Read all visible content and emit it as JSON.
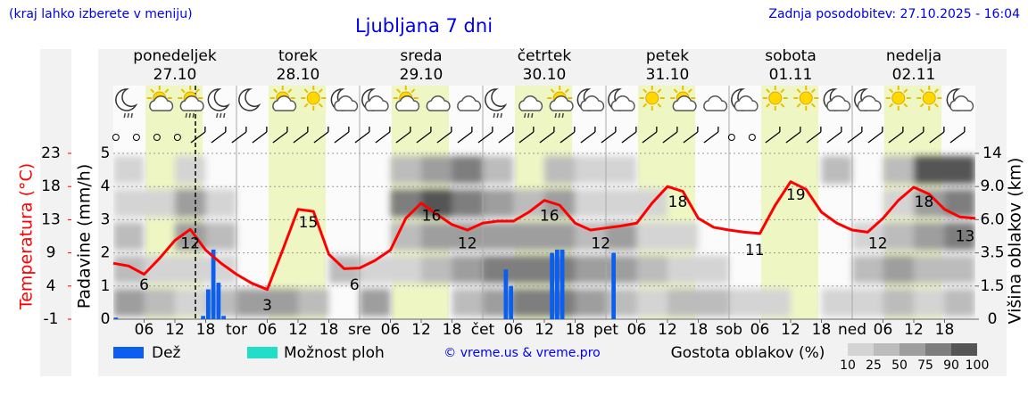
{
  "header": {
    "note": "(kraj lahko izberete v meniju)",
    "title": "Ljubljana 7 dni",
    "updated": "Zadnja posodobitev: 27.10.2025 - 16:04"
  },
  "time_axis": {
    "xlim": [
      0,
      168
    ],
    "xticks": [
      {
        "value": 6,
        "label": "06"
      },
      12,
      18,
      {
        "value": 24,
        "label": "tor"
      },
      {
        "value": 30,
        "label": "06"
      },
      {
        "value": 36,
        "label": "12"
      },
      {
        "value": 42,
        "label": "18"
      },
      {
        "value": 48,
        "label": "sre"
      },
      {
        "value": 54,
        "label": "06"
      },
      {
        "value": 60,
        "label": "12"
      },
      {
        "value": 66,
        "label": "18"
      },
      {
        "value": 72,
        "label": "čet"
      },
      {
        "value": 78,
        "label": "06"
      },
      {
        "value": 84,
        "label": "12"
      },
      {
        "value": 90,
        "label": "18"
      },
      {
        "value": 96,
        "label": "pet"
      },
      {
        "value": 102,
        "label": "06"
      },
      {
        "value": 108,
        "label": "12"
      },
      {
        "value": 114,
        "label": "18"
      },
      {
        "value": 120,
        "label": "sob"
      },
      {
        "value": 126,
        "label": "06"
      },
      {
        "value": 132,
        "label": "12"
      },
      {
        "value": 138,
        "label": "18"
      },
      {
        "value": 144,
        "label": "ned"
      },
      {
        "value": 150,
        "label": "06"
      },
      {
        "value": 156,
        "label": "12"
      },
      {
        "value": 162,
        "label": "18"
      }
    ],
    "days": [
      {
        "name": "ponedeljek",
        "date": "27.10",
        "color": "#000000"
      },
      {
        "name": "torek",
        "date": "28.10",
        "color": "#000000"
      },
      {
        "name": "sreda",
        "date": "29.10",
        "color": "#000000"
      },
      {
        "name": "četrtek",
        "date": "30.10",
        "color": "#000000"
      },
      {
        "name": "petek",
        "date": "31.10",
        "color": "#000000"
      },
      {
        "name": "sobota",
        "date": "01.11",
        "color": "#dd0000"
      },
      {
        "name": "nedelja",
        "date": "02.11",
        "color": "#dd0000"
      }
    ],
    "now": 16,
    "daylight": [
      6.25,
      17.4
    ]
  },
  "chart_data": [
    {
      "type": "line",
      "y_label": "Temperatura (°C)",
      "color": "#ff0000",
      "ylim": [
        -1,
        23
      ],
      "yticks": [
        -1,
        {
          "value": 3.8,
          "label": "4"
        },
        {
          "value": 8.6,
          "label": "9"
        },
        {
          "value": 13.4,
          "label": "13"
        },
        {
          "value": 18.2,
          "label": "18"
        },
        23
      ],
      "x": [
        0,
        3,
        6,
        9,
        12,
        15,
        18,
        21,
        24,
        27,
        30,
        33,
        36,
        39,
        42,
        45,
        48,
        51,
        54,
        57,
        60,
        63,
        66,
        69,
        72,
        75,
        78,
        81,
        84,
        87,
        90,
        93,
        96,
        99,
        102,
        105,
        108,
        111,
        114,
        117,
        120,
        123,
        126,
        129,
        132,
        135,
        138,
        141,
        144,
        147,
        150,
        153,
        156,
        159,
        162,
        165,
        168
      ],
      "values": [
        7.1,
        6.7,
        5.5,
        7.8,
        10.4,
        12.0,
        9.0,
        7.1,
        5.5,
        4.2,
        3.3,
        9.0,
        14.9,
        14.6,
        8.4,
        6.3,
        6.4,
        7.5,
        9.0,
        13.6,
        15.8,
        14.2,
        12.7,
        11.9,
        12.9,
        13.2,
        13.2,
        14.5,
        16.2,
        15.5,
        12.9,
        11.9,
        12.2,
        12.5,
        12.9,
        15.8,
        18.2,
        17.5,
        13.6,
        12.3,
        11.9,
        11.6,
        11.4,
        15.5,
        18.9,
        17.8,
        14.5,
        12.9,
        11.9,
        11.6,
        13.6,
        16.2,
        18.1,
        17.1,
        14.9,
        13.8,
        13.6
      ],
      "annotations": [
        {
          "x": 6,
          "value": 6
        },
        {
          "x": 15,
          "value": 12
        },
        {
          "x": 30,
          "value": 3
        },
        {
          "x": 38,
          "value": 15
        },
        {
          "x": 47,
          "value": 6
        },
        {
          "x": 62,
          "value": 16
        },
        {
          "x": 69,
          "value": 12
        },
        {
          "x": 85,
          "value": 16
        },
        {
          "x": 95,
          "value": 12
        },
        {
          "x": 110,
          "value": 18
        },
        {
          "x": 125,
          "value": 11
        },
        {
          "x": 133,
          "value": 19
        },
        {
          "x": 149,
          "value": 12
        },
        {
          "x": 158,
          "value": 18
        },
        {
          "x": 166,
          "value": 13
        }
      ]
    },
    {
      "type": "bar",
      "y_label": "Padavine (mm/h)",
      "ylim": [
        0,
        5
      ],
      "yticks": [
        0,
        1,
        2,
        3,
        4,
        5
      ],
      "grid": true,
      "series": [
        {
          "name": "Dež",
          "color": "#0a5ff0",
          "x": [
            0,
            17,
            18,
            19,
            20,
            21,
            76,
            77,
            85,
            86,
            87,
            97
          ],
          "values": [
            0.05,
            0.1,
            0.9,
            2.1,
            1.1,
            0.1,
            1.5,
            1.0,
            2.0,
            2.1,
            2.1,
            2.0
          ]
        },
        {
          "name": "Možnost ploh",
          "color": "#22ddc8",
          "x": [],
          "values": []
        }
      ]
    },
    {
      "type": "heatmap",
      "title": "Gostota oblakov (%)",
      "y_label": "Višina oblakov (km)",
      "credit": "© vreme.us & vreme.pro",
      "y2ticks": [
        0,
        1.5,
        3.5,
        {
          "value": 6,
          "label": "6.0"
        },
        {
          "value": 9,
          "label": "9.0"
        },
        14
      ],
      "levels": [
        10,
        25,
        50,
        75,
        90,
        100
      ],
      "colors": [
        "#d4d4d4",
        "#bcbcbc",
        "#9e9e9e",
        "#7e7e7e",
        "#555555"
      ],
      "x": [
        0,
        6,
        12,
        18,
        24,
        30,
        36,
        42,
        48,
        54,
        60,
        66,
        72,
        78,
        84,
        90,
        96,
        102,
        108,
        114,
        120,
        126,
        132,
        138,
        144,
        150,
        156,
        162
      ],
      "values": [
        [
          50,
          25,
          25,
          10,
          10
        ],
        [
          25,
          10,
          0,
          10,
          0
        ],
        [
          10,
          10,
          50,
          50,
          10
        ],
        [
          25,
          10,
          25,
          10,
          0
        ],
        [
          50,
          0,
          0,
          0,
          0
        ],
        [
          50,
          0,
          0,
          0,
          0
        ],
        [
          25,
          0,
          0,
          0,
          0
        ],
        [
          0,
          25,
          0,
          0,
          0
        ],
        [
          50,
          10,
          0,
          0,
          0
        ],
        [
          0,
          10,
          25,
          75,
          25
        ],
        [
          0,
          25,
          50,
          90,
          50
        ],
        [
          25,
          50,
          50,
          75,
          75
        ],
        [
          50,
          75,
          50,
          50,
          25
        ],
        [
          75,
          75,
          50,
          25,
          0
        ],
        [
          75,
          75,
          50,
          50,
          25
        ],
        [
          50,
          50,
          25,
          10,
          10
        ],
        [
          25,
          50,
          50,
          10,
          10
        ],
        [
          10,
          25,
          10,
          10,
          0
        ],
        [
          25,
          10,
          10,
          0,
          0
        ],
        [
          25,
          10,
          0,
          0,
          0
        ],
        [
          10,
          0,
          0,
          0,
          0
        ],
        [
          10,
          0,
          0,
          0,
          0
        ],
        [
          0,
          0,
          0,
          0,
          0
        ],
        [
          10,
          0,
          0,
          0,
          25
        ],
        [
          10,
          25,
          10,
          0,
          0
        ],
        [
          25,
          50,
          25,
          10,
          25
        ],
        [
          10,
          25,
          50,
          50,
          90
        ],
        [
          25,
          25,
          75,
          75,
          90
        ]
      ]
    }
  ]
}
